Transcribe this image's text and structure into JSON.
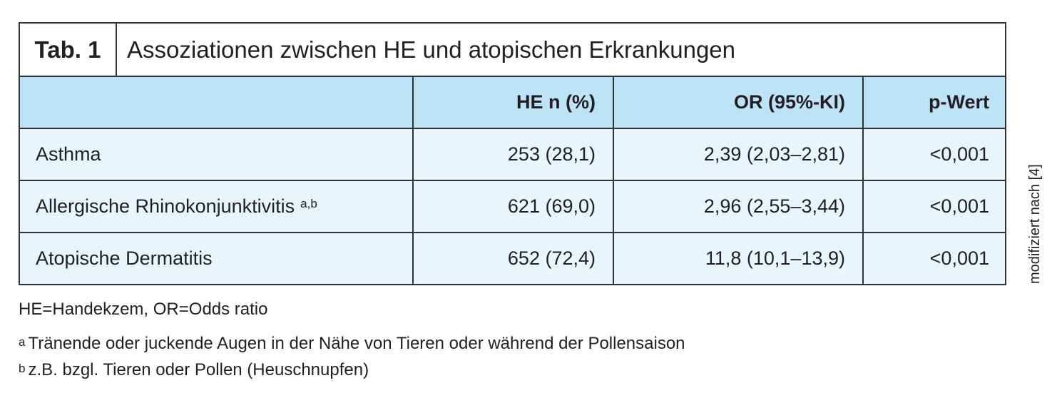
{
  "table": {
    "label": "Tab. 1",
    "title": "Assoziationen zwischen HE und atopischen Erkrankungen",
    "headers": [
      "",
      "HE n (%)",
      "OR (95%-KI)",
      "p-Wert"
    ],
    "rows": [
      {
        "label": "Asthma",
        "sup": "",
        "he": "253 (28,1)",
        "or": "2,39 (2,03–2,81)",
        "p": "<0,001"
      },
      {
        "label": "Allergische Rhinokonjunktivitis",
        "sup": "a,b",
        "he": "621 (69,0)",
        "or": "2,96 (2,55–3,44)",
        "p": "<0,001"
      },
      {
        "label": "Atopische Dermatitis",
        "sup": "",
        "he": "652 (72,4)",
        "or": "11,8 (10,1–13,9)",
        "p": "<0,001"
      }
    ],
    "colors": {
      "header_bg": "#bde3f7",
      "row_bg": "#e8f5fd",
      "border": "#333333"
    }
  },
  "source": "modifiziert nach [4]",
  "footnotes": {
    "abbrev": "HE=Handekzem, OR=Odds ratio",
    "a_mark": "a",
    "a_text": "Tränende oder juckende Augen in der Nähe von Tieren oder während der Pollensaison",
    "b_mark": "b",
    "b_text": "z.B. bzgl. Tieren oder Pollen (Heuschnupfen)"
  }
}
